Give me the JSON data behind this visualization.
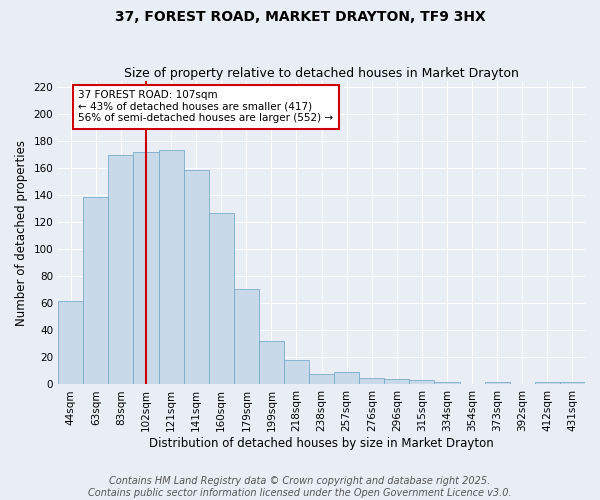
{
  "title": "37, FOREST ROAD, MARKET DRAYTON, TF9 3HX",
  "subtitle": "Size of property relative to detached houses in Market Drayton",
  "xlabel": "Distribution of detached houses by size in Market Drayton",
  "ylabel": "Number of detached properties",
  "categories": [
    "44sqm",
    "63sqm",
    "83sqm",
    "102sqm",
    "121sqm",
    "141sqm",
    "160sqm",
    "179sqm",
    "199sqm",
    "218sqm",
    "238sqm",
    "257sqm",
    "276sqm",
    "296sqm",
    "315sqm",
    "334sqm",
    "354sqm",
    "373sqm",
    "392sqm",
    "412sqm",
    "431sqm"
  ],
  "values": [
    62,
    139,
    170,
    172,
    174,
    159,
    127,
    71,
    32,
    18,
    8,
    9,
    5,
    4,
    3,
    2,
    0,
    2,
    0,
    2,
    2
  ],
  "bar_color": "#c8daea",
  "bar_edge_color": "#7aaac8",
  "vline_color": "#cc0000",
  "vline_x_index": 3,
  "annotation_box_facecolor": "#ffffff",
  "annotation_box_edgecolor": "#cc0000",
  "property_size": 107,
  "annotation_smaller_pct": "43%",
  "annotation_smaller_n": 417,
  "annotation_larger_pct": "56%",
  "annotation_larger_n": 552,
  "footer_line1": "Contains HM Land Registry data © Crown copyright and database right 2025.",
  "footer_line2": "Contains public sector information licensed under the Open Government Licence v3.0.",
  "ylim": [
    0,
    225
  ],
  "background_color": "#e8eef4",
  "grid_color": "#ffffff",
  "title_fontsize": 10,
  "subtitle_fontsize": 9,
  "axis_label_fontsize": 8.5,
  "tick_fontsize": 7.5,
  "annotation_fontsize": 7.5,
  "footer_fontsize": 7
}
